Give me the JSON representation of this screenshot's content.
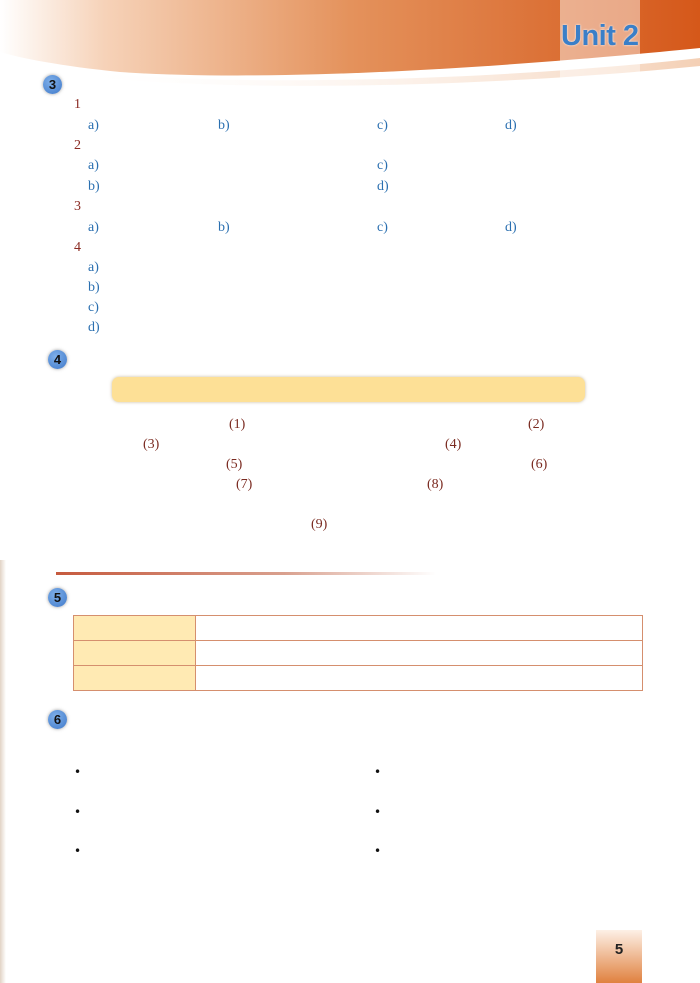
{
  "header": {
    "unit_title": "Unit 2",
    "colors": {
      "banner_start": "#fbe6d6",
      "banner_end": "#d8601c",
      "title": "#3a7fc8"
    }
  },
  "sections": {
    "s3": {
      "badge": "3",
      "q1": {
        "num": "1",
        "a": "a)",
        "b": "b)",
        "c": "c)",
        "d": "d)"
      },
      "q2": {
        "num": "2",
        "a": "a)",
        "b": "b)",
        "c": "c)",
        "d": "d)"
      },
      "q3": {
        "num": "3",
        "a": "a)",
        "b": "b)",
        "c": "c)",
        "d": "d)"
      },
      "q4": {
        "num": "4",
        "a": "a)",
        "b": "b)",
        "c": "c)",
        "d": "d)"
      }
    },
    "s4": {
      "badge": "4",
      "blanks": [
        "(1)",
        "(2)",
        "(3)",
        "(4)",
        "(5)",
        "(6)",
        "(7)",
        "(8)",
        "(9)"
      ]
    },
    "s5": {
      "badge": "5"
    },
    "s6": {
      "badge": "6",
      "bullets": [
        "•",
        "•",
        "•",
        "•",
        "•",
        "•"
      ]
    }
  },
  "footer": {
    "page_number": "5"
  }
}
